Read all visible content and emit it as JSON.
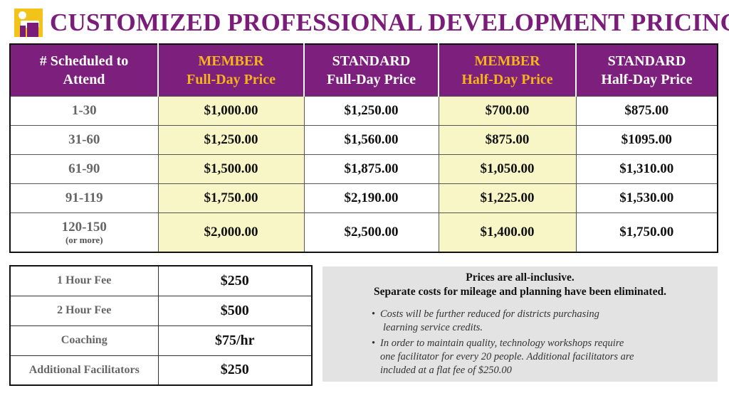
{
  "title": "CUSTOMIZED PROFESSIONAL DEVELOPMENT PRICING",
  "logo": {
    "icon": "person-logo-icon",
    "colors": {
      "yellow": "#f2c318",
      "purple": "#7b1c7a"
    }
  },
  "colors": {
    "header_bg": "#7d1f7d",
    "member_text": "#f6b41a",
    "member_cell_bg": "#f8f6c6",
    "notes_bg": "#e3e3e3"
  },
  "pricing": {
    "headers": [
      {
        "line1": "# Scheduled to",
        "line2": "Attend",
        "member": false
      },
      {
        "line1": "MEMBER",
        "line2": "Full-Day Price",
        "member": true
      },
      {
        "line1": "STANDARD",
        "line2": "Full-Day Price",
        "member": false
      },
      {
        "line1": "MEMBER",
        "line2": "Half-Day Price",
        "member": true
      },
      {
        "line1": "STANDARD",
        "line2": "Half-Day Price",
        "member": false
      }
    ],
    "rows": [
      {
        "range": "1-30",
        "note": "",
        "member_full": "$1,000.00",
        "standard_full": "$1,250.00",
        "member_half": "$700.00",
        "standard_half": "$875.00"
      },
      {
        "range": "31-60",
        "note": "",
        "member_full": "$1,250.00",
        "standard_full": "$1,560.00",
        "member_half": "$875.00",
        "standard_half": "$1095.00"
      },
      {
        "range": "61-90",
        "note": "",
        "member_full": "$1,500.00",
        "standard_full": "$1,875.00",
        "member_half": "$1,050.00",
        "standard_half": "$1,310.00"
      },
      {
        "range": "91-119",
        "note": "",
        "member_full": "$1,750.00",
        "standard_full": "$2,190.00",
        "member_half": "$1,225.00",
        "standard_half": "$1,530.00"
      },
      {
        "range": "120-150",
        "note": "(or more)",
        "member_full": "$2,000.00",
        "standard_full": "$2,500.00",
        "member_half": "$1,400.00",
        "standard_half": "$1,750.00"
      }
    ]
  },
  "fees": [
    {
      "label": "1 Hour Fee",
      "value": "$250"
    },
    {
      "label": "2 Hour Fee",
      "value": "$500"
    },
    {
      "label": "Coaching",
      "value": "$75/hr"
    },
    {
      "label": "Additional Facilitators",
      "value": "$250"
    }
  ],
  "notes": {
    "line1": "Prices are all-inclusive.",
    "line2": "Separate costs for mileage and planning have been eliminated.",
    "bullets": [
      {
        "lines": [
          "Costs will be further reduced for districts purchasing",
          "learning service credits."
        ]
      },
      {
        "lines": [
          "In order to maintain quality, technology workshops require",
          "one facilitator for every 20 people. Additional facilitators are",
          "included at a flat fee of $250.00"
        ]
      }
    ]
  }
}
